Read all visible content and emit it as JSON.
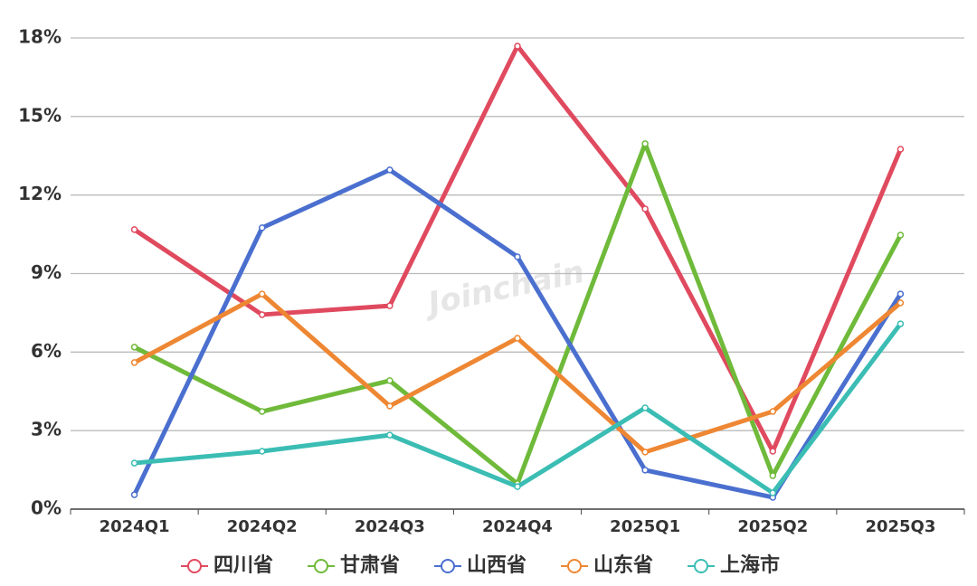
{
  "chart_data": {
    "type": "line",
    "watermark": "Joinchain",
    "categories": [
      "2024Q1",
      "2024Q2",
      "2024Q3",
      "2024Q4",
      "2025Q1",
      "2025Q2",
      "2025Q3"
    ],
    "series": [
      {
        "name": "四川省",
        "color": "#e04a5f",
        "values": [
          10.68,
          7.43,
          7.77,
          17.69,
          11.47,
          2.21,
          13.75
        ]
      },
      {
        "name": "甘肃省",
        "color": "#6fba3a",
        "values": [
          6.19,
          3.73,
          4.91,
          0.97,
          13.96,
          1.28,
          10.47
        ]
      },
      {
        "name": "山西省",
        "color": "#4a6fcf",
        "values": [
          0.55,
          10.75,
          12.96,
          9.64,
          1.49,
          0.45,
          8.22
        ]
      },
      {
        "name": "山东省",
        "color": "#ee8733",
        "values": [
          5.6,
          8.22,
          3.94,
          6.53,
          2.18,
          3.73,
          7.88
        ]
      },
      {
        "name": "上海市",
        "color": "#3bbdb4",
        "values": [
          1.76,
          2.21,
          2.83,
          0.86,
          3.87,
          0.62,
          7.08
        ]
      }
    ],
    "ylim": [
      0,
      18
    ],
    "yticks": [
      {
        "value": 0,
        "label": "0%"
      },
      {
        "value": 3,
        "label": "3%"
      },
      {
        "value": 6,
        "label": "6%"
      },
      {
        "value": 9,
        "label": "9%"
      },
      {
        "value": 12,
        "label": "12%"
      },
      {
        "value": 15,
        "label": "15%"
      },
      {
        "value": 18,
        "label": "18%"
      }
    ],
    "grid": true,
    "legend": "bottom"
  }
}
